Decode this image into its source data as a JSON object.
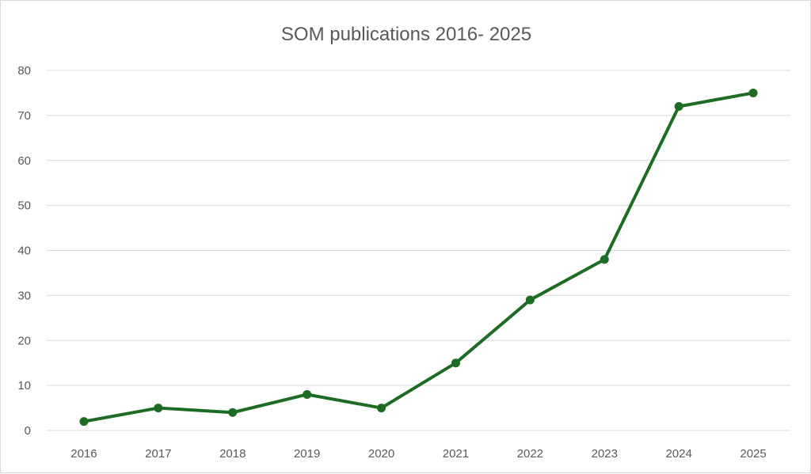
{
  "chart_data": {
    "type": "line",
    "title": "SOM publications 2016- 2025",
    "xlabel": "",
    "ylabel": "",
    "categories": [
      "2016",
      "2017",
      "2018",
      "2019",
      "2020",
      "2021",
      "2022",
      "2023",
      "2024",
      "2025"
    ],
    "values": [
      2,
      5,
      4,
      8,
      5,
      15,
      29,
      38,
      72,
      75
    ],
    "ylim": [
      0,
      80
    ],
    "yticks": [
      "0",
      "10",
      "20",
      "30",
      "40",
      "50",
      "60",
      "70",
      "80"
    ],
    "grid": true,
    "legend": "none",
    "line_color": "#1e6b24",
    "grid_color": "#d9d9d9"
  }
}
